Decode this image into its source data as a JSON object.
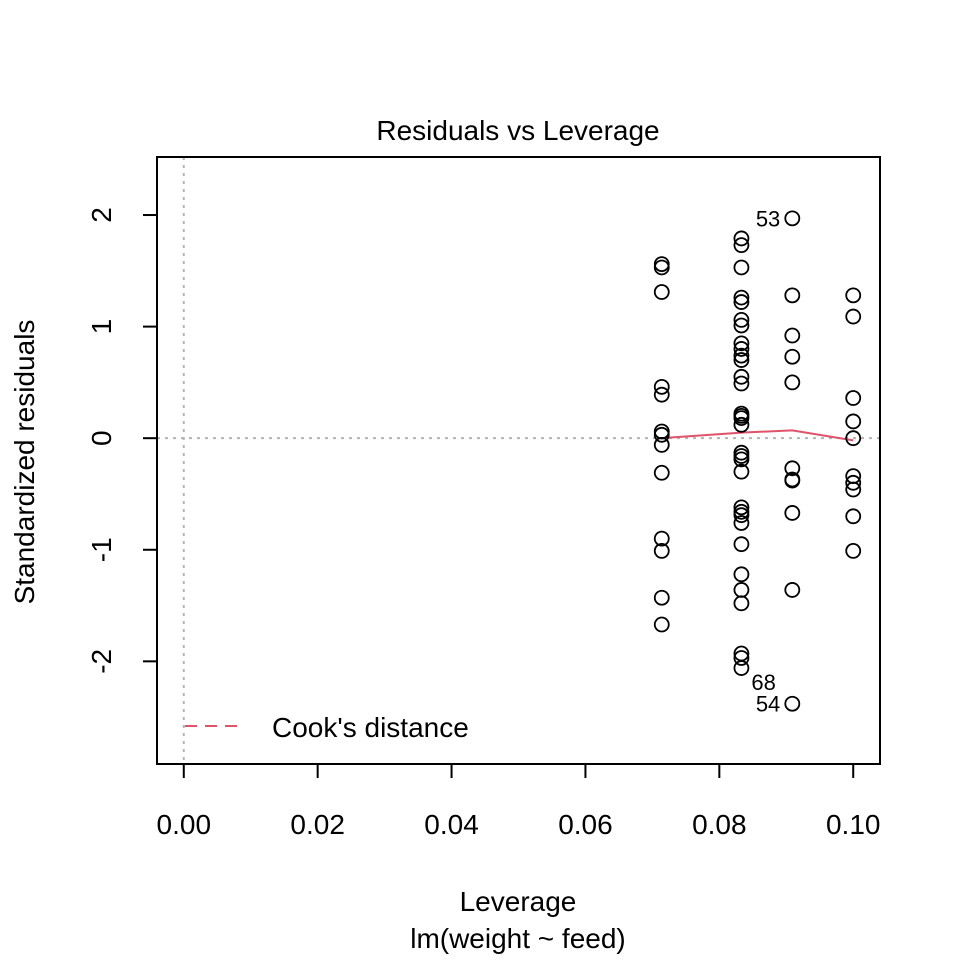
{
  "chart_data": {
    "type": "scatter",
    "title": "Residuals vs Leverage",
    "xlabel": "Leverage",
    "sublabel": "lm(weight ~ feed)",
    "ylabel": "Standardized residuals",
    "xlim": [
      -0.004,
      0.104
    ],
    "ylim": [
      -2.92,
      2.52
    ],
    "x_ticks": [
      0.0,
      0.02,
      0.04,
      0.06,
      0.08,
      0.1
    ],
    "x_tick_labels": [
      "0.00",
      "0.02",
      "0.04",
      "0.06",
      "0.08",
      "0.10"
    ],
    "y_ticks": [
      -2,
      -1,
      0,
      1,
      2
    ],
    "y_tick_labels": [
      "-2",
      "-1",
      "0",
      "1",
      "2"
    ],
    "reference_lines": {
      "h": 0,
      "v": 0,
      "color": "#b3b3b3",
      "style": "dotted"
    },
    "series": [
      {
        "type": "scatter",
        "marker": "open-circle",
        "color": "#000000",
        "groups": [
          {
            "x": 0.0714,
            "y": [
              1.56,
              1.53,
              1.31,
              0.46,
              0.39,
              0.06,
              0.03,
              -0.06,
              -0.31,
              -0.9,
              -1.01,
              -1.43,
              -1.67
            ]
          },
          {
            "x": 0.0833,
            "y": [
              1.79,
              1.73,
              1.53,
              1.26,
              1.22,
              1.06,
              1.01,
              0.85,
              0.8,
              0.74,
              0.7,
              0.55,
              0.49,
              0.22,
              0.2,
              0.18,
              0.12,
              -0.13,
              -0.16,
              -0.19,
              -0.3,
              -0.62,
              -0.66,
              -0.69,
              -0.76,
              -0.95,
              -1.22,
              -1.36,
              -1.48,
              -1.93,
              -1.97,
              -2.06
            ]
          },
          {
            "x": 0.0909,
            "y": [
              1.97,
              1.28,
              0.92,
              0.73,
              0.5,
              -0.27,
              -0.37,
              -0.38,
              -0.67,
              -1.36,
              -2.38
            ]
          },
          {
            "x": 0.1,
            "y": [
              1.28,
              1.09,
              0.36,
              0.15,
              0.0,
              -0.34,
              -0.4,
              -0.46,
              -0.7,
              -1.01
            ]
          }
        ]
      },
      {
        "type": "line",
        "color": "#df536b",
        "x": [
          0.0714,
          0.0833,
          0.0909,
          0.1
        ],
        "y": [
          0.0,
          0.05,
          0.07,
          -0.02
        ]
      }
    ],
    "annotations": [
      {
        "label": "53",
        "x": 0.0909,
        "y": 1.97,
        "side": "left"
      },
      {
        "label": "68",
        "x": 0.0833,
        "y": -2.06,
        "side": "below-right"
      },
      {
        "label": "54",
        "x": 0.0909,
        "y": -2.38,
        "side": "left"
      }
    ],
    "legend": {
      "position": "bottom-left",
      "entries": [
        {
          "label": "Cook's distance",
          "color": "#df536b",
          "style": "dashed"
        }
      ]
    }
  }
}
